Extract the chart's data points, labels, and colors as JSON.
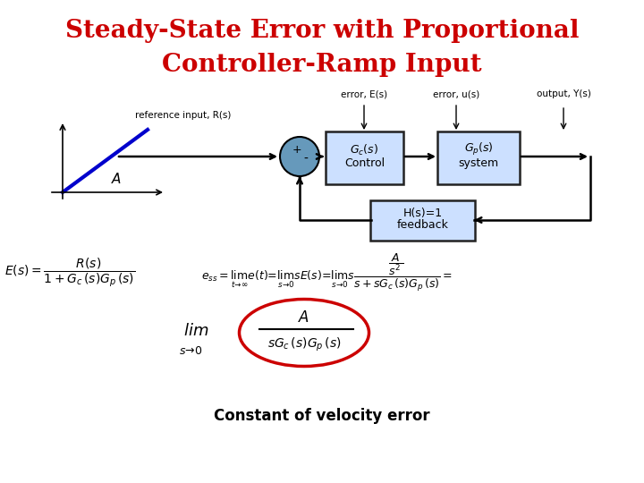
{
  "title_line1": "Steady-State Error with Proportional",
  "title_line2": "Controller-Ramp Input",
  "title_color": "#cc0000",
  "title_fontsize": 20,
  "bg_color": "#ffffff",
  "subtitle": "Constant of velocity error",
  "subtitle_fontsize": 12,
  "ellipse_color": "#cc0000"
}
